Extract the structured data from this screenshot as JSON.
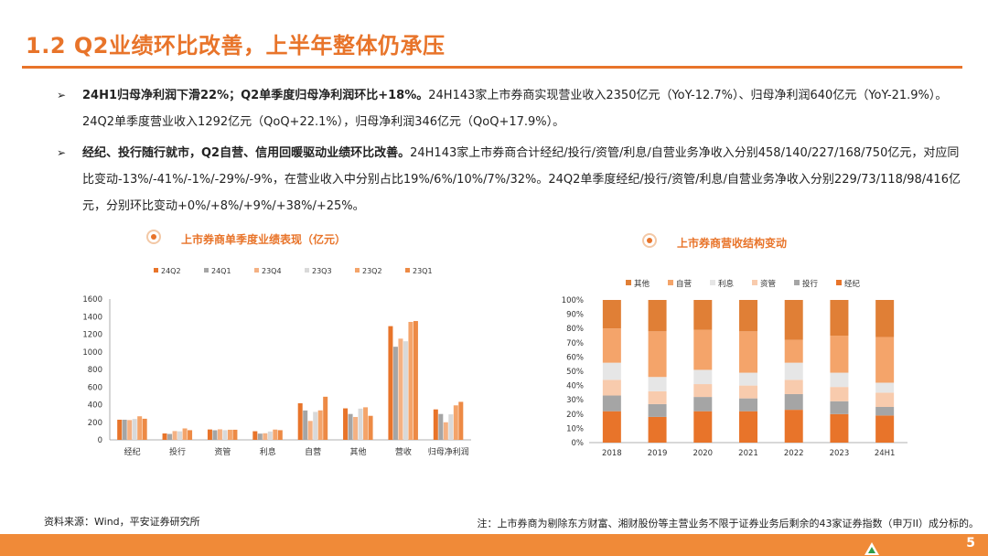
{
  "title": "1.2 Q2业绩环比改善，上半年整体仍承压",
  "bullets": [
    {
      "bold": "24H1归母净利润下滑22%；Q2单季度归母净利润环比+18%。",
      "text": "24H143家上市券商实现营业收入2350亿元（YoY-12.7%）、归母净利润640亿元（YoY-21.9%）。24Q2单季度营业收入1292亿元（QoQ+22.1%），归母净利润346亿元（QoQ+17.9%）。"
    },
    {
      "bold": "经纪、投行随行就市，Q2自营、信用回暖驱动业绩环比改善。",
      "text": "24H143家上市券商合计经纪/投行/资管/利息/自营业务净收入分别458/140/227/168/750亿元，对应同比变动-13%/-41%/-1%/-29%/-9%，在营业收入中分别占比19%/6%/10%/7%/32%。24Q2单季度经纪/投行/资管/利息/自营业务净收入分别229/73/118/98/416亿元，分别环比变动+0%/+8%/+9%/+38%/+25%。"
    }
  ],
  "left_chart_title": "上市券商单季度业绩表现（亿元）",
  "right_chart_title": "上市券商营收结构变动",
  "source": "资料来源：Wind，平安证券研究所",
  "note": "注：上市券商为剔除东方财富、湘财股份等主营业务不限于证券业务后剩余的43家证券指数（申万II）成分标的。",
  "page_number": "5",
  "chart_data": [
    {
      "type": "bar",
      "title": "上市券商单季度业绩表现（亿元）",
      "categories": [
        "经纪",
        "投行",
        "资管",
        "利息",
        "自营",
        "其他",
        "营收",
        "归母净利润"
      ],
      "ylim": [
        0,
        1600
      ],
      "yticks": [
        "0",
        "200",
        "400",
        "600",
        "800",
        "1000",
        "1200",
        "1400",
        "1600"
      ],
      "legend_position": "top",
      "series": [
        {
          "name": "24Q2",
          "color": "#e8742a",
          "values": [
            229,
            73,
            118,
            98,
            416,
            358,
            1292,
            346
          ]
        },
        {
          "name": "24Q1",
          "color": "#a5a5a5",
          "values": [
            229,
            67,
            109,
            71,
            334,
            294,
            1058,
            294
          ]
        },
        {
          "name": "23Q4",
          "color": "#f4b183",
          "values": [
            225,
            100,
            120,
            75,
            215,
            260,
            1150,
            200
          ]
        },
        {
          "name": "23Q3",
          "color": "#d9d9d9",
          "values": [
            237,
            97,
            110,
            95,
            318,
            355,
            1120,
            290
          ]
        },
        {
          "name": "23Q2",
          "color": "#f4a46a",
          "values": [
            268,
            130,
            115,
            117,
            335,
            370,
            1340,
            392
          ]
        },
        {
          "name": "23Q1",
          "color": "#ed8a45",
          "values": [
            240,
            110,
            115,
            110,
            490,
            273,
            1350,
            432
          ]
        }
      ]
    },
    {
      "type": "bar",
      "title": "上市券商营收结构变动",
      "stacked": true,
      "categories": [
        "2018",
        "2019",
        "2020",
        "2021",
        "2022",
        "2023",
        "24H1"
      ],
      "ylim": [
        0,
        100
      ],
      "yticks": [
        "0%",
        "10%",
        "20%",
        "30%",
        "40%",
        "50%",
        "60%",
        "70%",
        "80%",
        "90%",
        "100%"
      ],
      "legend_position": "top",
      "series": [
        {
          "name": "经纪",
          "color": "#e8742a",
          "values": [
            22,
            18,
            22,
            22,
            23,
            20,
            19
          ]
        },
        {
          "name": "投行",
          "color": "#a5a5a5",
          "values": [
            11,
            9,
            10,
            9,
            11,
            9,
            6
          ]
        },
        {
          "name": "资管",
          "color": "#f8cbad",
          "values": [
            11,
            9,
            9,
            9,
            10,
            10,
            10
          ]
        },
        {
          "name": "利息",
          "color": "#e6e6e6",
          "values": [
            12,
            10,
            10,
            9,
            12,
            10,
            7
          ]
        },
        {
          "name": "自营",
          "color": "#f4a46a",
          "values": [
            24,
            32,
            28,
            29,
            16,
            26,
            32
          ]
        },
        {
          "name": "其他",
          "color": "#e07f36",
          "values": [
            20,
            22,
            21,
            22,
            28,
            25,
            26
          ]
        }
      ]
    }
  ]
}
